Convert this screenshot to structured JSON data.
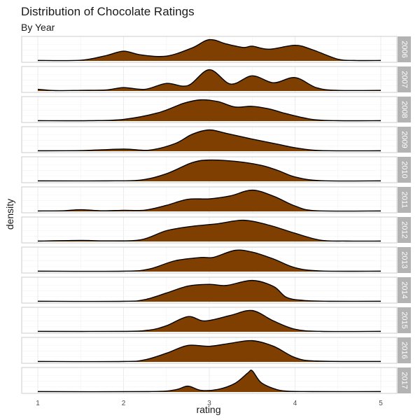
{
  "chart_data": {
    "type": "area",
    "title": "Distribution of Chocolate Ratings",
    "subtitle": "By Year",
    "xlabel": "rating",
    "ylabel": "density",
    "xlim": [
      1,
      5
    ],
    "x_ticks": [
      1,
      2,
      3,
      4,
      5
    ],
    "grid": true,
    "fill_color": "#7f3f00",
    "line_color": "#000000",
    "strip_color": "#b3b3b3",
    "panel_border_color": "#cccccc",
    "series": [
      {
        "name": "2006",
        "points": [
          [
            1.0,
            0.02
          ],
          [
            1.5,
            0.03
          ],
          [
            1.8,
            0.25
          ],
          [
            2.0,
            0.45
          ],
          [
            2.2,
            0.28
          ],
          [
            2.5,
            0.22
          ],
          [
            2.8,
            0.6
          ],
          [
            3.0,
            0.98
          ],
          [
            3.2,
            0.78
          ],
          [
            3.4,
            0.62
          ],
          [
            3.5,
            0.68
          ],
          [
            3.7,
            0.54
          ],
          [
            4.0,
            0.72
          ],
          [
            4.2,
            0.52
          ],
          [
            4.5,
            0.08
          ],
          [
            4.7,
            0.02
          ],
          [
            5.0,
            0.02
          ]
        ]
      },
      {
        "name": "2007",
        "points": [
          [
            1.0,
            0.08
          ],
          [
            1.2,
            0.02
          ],
          [
            1.5,
            0.03
          ],
          [
            1.8,
            0.05
          ],
          [
            2.0,
            0.16
          ],
          [
            2.25,
            0.08
          ],
          [
            2.5,
            0.35
          ],
          [
            2.75,
            0.25
          ],
          [
            3.0,
            0.98
          ],
          [
            3.25,
            0.32
          ],
          [
            3.5,
            0.7
          ],
          [
            3.75,
            0.38
          ],
          [
            4.0,
            0.62
          ],
          [
            4.25,
            0.15
          ],
          [
            4.5,
            0.03
          ],
          [
            5.0,
            0.03
          ]
        ]
      },
      {
        "name": "2008",
        "points": [
          [
            1.0,
            0.02
          ],
          [
            1.6,
            0.02
          ],
          [
            2.0,
            0.08
          ],
          [
            2.4,
            0.38
          ],
          [
            2.7,
            0.82
          ],
          [
            2.9,
            0.98
          ],
          [
            3.1,
            0.9
          ],
          [
            3.3,
            0.65
          ],
          [
            3.5,
            0.68
          ],
          [
            3.7,
            0.56
          ],
          [
            3.9,
            0.34
          ],
          [
            4.2,
            0.08
          ],
          [
            4.5,
            0.02
          ],
          [
            5.0,
            0.02
          ]
        ]
      },
      {
        "name": "2009",
        "points": [
          [
            1.0,
            0.02
          ],
          [
            1.5,
            0.03
          ],
          [
            2.0,
            0.1
          ],
          [
            2.3,
            0.05
          ],
          [
            2.6,
            0.35
          ],
          [
            2.8,
            0.78
          ],
          [
            3.0,
            0.98
          ],
          [
            3.2,
            0.82
          ],
          [
            3.5,
            0.56
          ],
          [
            3.8,
            0.32
          ],
          [
            4.0,
            0.16
          ],
          [
            4.3,
            0.03
          ],
          [
            5.0,
            0.02
          ]
        ]
      },
      {
        "name": "2010",
        "points": [
          [
            1.0,
            0.02
          ],
          [
            1.8,
            0.02
          ],
          [
            2.2,
            0.06
          ],
          [
            2.5,
            0.35
          ],
          [
            2.8,
            0.86
          ],
          [
            3.0,
            0.98
          ],
          [
            3.3,
            0.92
          ],
          [
            3.6,
            0.74
          ],
          [
            3.8,
            0.5
          ],
          [
            4.0,
            0.2
          ],
          [
            4.3,
            0.03
          ],
          [
            5.0,
            0.02
          ]
        ]
      },
      {
        "name": "2011",
        "points": [
          [
            1.0,
            0.02
          ],
          [
            1.3,
            0.03
          ],
          [
            1.5,
            0.08
          ],
          [
            1.75,
            0.03
          ],
          [
            2.0,
            0.05
          ],
          [
            2.25,
            0.06
          ],
          [
            2.5,
            0.28
          ],
          [
            2.75,
            0.56
          ],
          [
            3.0,
            0.58
          ],
          [
            3.25,
            0.72
          ],
          [
            3.5,
            0.98
          ],
          [
            3.75,
            0.7
          ],
          [
            4.0,
            0.25
          ],
          [
            4.25,
            0.03
          ],
          [
            5.0,
            0.02
          ]
        ]
      },
      {
        "name": "2012",
        "points": [
          [
            1.0,
            0.02
          ],
          [
            1.5,
            0.05
          ],
          [
            1.8,
            0.03
          ],
          [
            2.2,
            0.08
          ],
          [
            2.5,
            0.5
          ],
          [
            2.8,
            0.7
          ],
          [
            3.1,
            0.82
          ],
          [
            3.4,
            0.98
          ],
          [
            3.7,
            0.75
          ],
          [
            4.0,
            0.38
          ],
          [
            4.3,
            0.06
          ],
          [
            4.6,
            0.02
          ],
          [
            5.0,
            0.02
          ]
        ]
      },
      {
        "name": "2013",
        "points": [
          [
            1.0,
            0.02
          ],
          [
            2.0,
            0.02
          ],
          [
            2.3,
            0.12
          ],
          [
            2.6,
            0.5
          ],
          [
            2.9,
            0.65
          ],
          [
            3.05,
            0.66
          ],
          [
            3.3,
            0.98
          ],
          [
            3.5,
            0.9
          ],
          [
            3.75,
            0.58
          ],
          [
            4.0,
            0.18
          ],
          [
            4.3,
            0.03
          ],
          [
            5.0,
            0.02
          ]
        ]
      },
      {
        "name": "2014",
        "points": [
          [
            1.0,
            0.02
          ],
          [
            2.0,
            0.02
          ],
          [
            2.25,
            0.1
          ],
          [
            2.5,
            0.4
          ],
          [
            2.75,
            0.72
          ],
          [
            3.0,
            0.8
          ],
          [
            3.2,
            0.75
          ],
          [
            3.5,
            0.98
          ],
          [
            3.75,
            0.7
          ],
          [
            3.9,
            0.2
          ],
          [
            4.1,
            0.06
          ],
          [
            4.4,
            0.02
          ],
          [
            5.0,
            0.02
          ]
        ]
      },
      {
        "name": "2015",
        "points": [
          [
            1.0,
            0.02
          ],
          [
            2.0,
            0.02
          ],
          [
            2.3,
            0.08
          ],
          [
            2.5,
            0.28
          ],
          [
            2.75,
            0.7
          ],
          [
            2.95,
            0.5
          ],
          [
            3.25,
            0.76
          ],
          [
            3.5,
            0.98
          ],
          [
            3.75,
            0.5
          ],
          [
            4.0,
            0.12
          ],
          [
            4.3,
            0.02
          ],
          [
            5.0,
            0.02
          ]
        ]
      },
      {
        "name": "2016",
        "points": [
          [
            1.0,
            0.02
          ],
          [
            2.0,
            0.02
          ],
          [
            2.25,
            0.1
          ],
          [
            2.5,
            0.4
          ],
          [
            2.75,
            0.76
          ],
          [
            3.0,
            0.72
          ],
          [
            3.25,
            0.86
          ],
          [
            3.5,
            0.98
          ],
          [
            3.75,
            0.72
          ],
          [
            4.0,
            0.2
          ],
          [
            4.25,
            0.04
          ],
          [
            5.0,
            0.02
          ]
        ]
      },
      {
        "name": "2017",
        "points": [
          [
            1.0,
            0.02
          ],
          [
            2.3,
            0.02
          ],
          [
            2.6,
            0.1
          ],
          [
            2.75,
            0.27
          ],
          [
            2.9,
            0.08
          ],
          [
            3.1,
            0.12
          ],
          [
            3.3,
            0.4
          ],
          [
            3.45,
            0.88
          ],
          [
            3.5,
            0.98
          ],
          [
            3.6,
            0.45
          ],
          [
            3.75,
            0.16
          ],
          [
            3.9,
            0.04
          ],
          [
            4.2,
            0.02
          ],
          [
            5.0,
            0.02
          ]
        ]
      }
    ]
  }
}
